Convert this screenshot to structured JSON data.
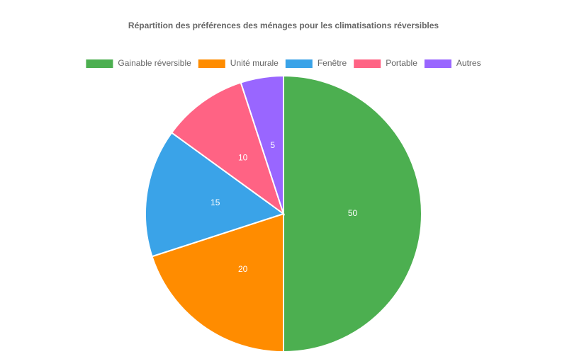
{
  "chart_data": {
    "type": "pie",
    "title": "Répartition des préférences des ménages pour les climatisations réversibles",
    "categories": [
      "Gainable réversible",
      "Unité murale",
      "Fenêtre",
      "Portable",
      "Autres"
    ],
    "values": [
      50,
      20,
      15,
      10,
      5
    ],
    "colors": [
      "#4caf50",
      "#ff8c00",
      "#3aa3e8",
      "#ff6384",
      "#9966ff"
    ],
    "legend": "top"
  }
}
